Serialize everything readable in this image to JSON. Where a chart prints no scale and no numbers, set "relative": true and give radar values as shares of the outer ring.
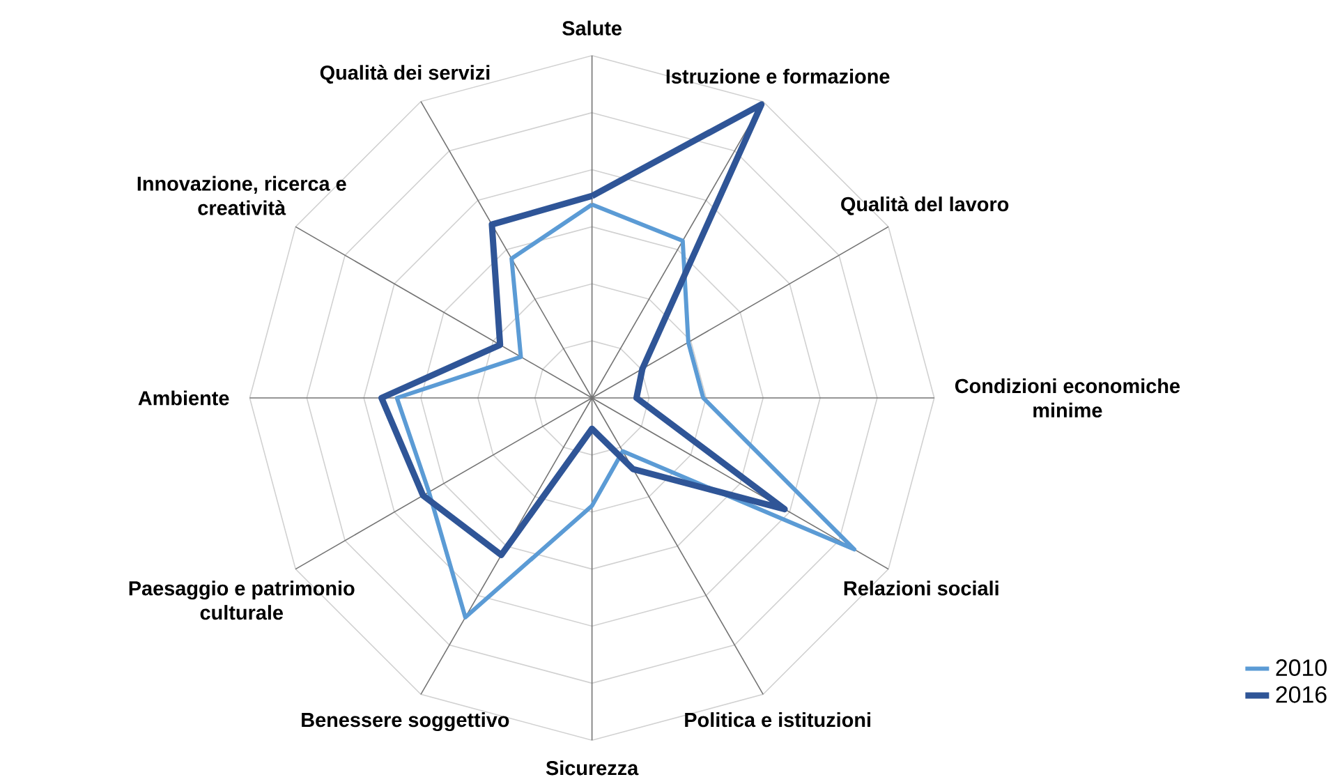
{
  "chart_data": {
    "type": "radar",
    "relative": true,
    "grid": true,
    "legend": "bottom right",
    "marker": "none",
    "line_style": "solid",
    "categories": [
      "Salute",
      "Istruzione e formazione",
      "Qualità del lavoro",
      "Condizioni economiche minime",
      "Relazioni sociali",
      "Politica e istituzioni",
      "Sicurezza",
      "Benessere soggettivo",
      "Paesaggio e patrimonio culturale",
      "Ambiente",
      "Innovazione, ricerca e creatività",
      "Qualità dei servizi"
    ],
    "series": [
      {
        "name": "2010",
        "color": "#5b9bd5",
        "values": [
          0.565,
          0.53,
          0.325,
          0.325,
          0.885,
          0.18,
          0.315,
          0.74,
          0.55,
          0.57,
          0.24,
          0.47
        ]
      },
      {
        "name": "2016",
        "color": "#2f5597",
        "values": [
          0.59,
          0.99,
          0.17,
          0.13,
          0.65,
          0.24,
          0.09,
          0.53,
          0.57,
          0.615,
          0.31,
          0.585
        ]
      }
    ]
  }
}
